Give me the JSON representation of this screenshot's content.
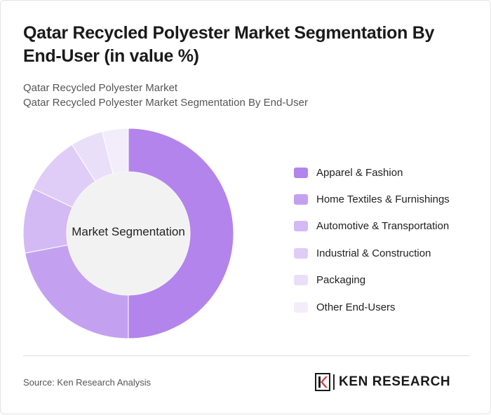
{
  "title": "Qatar Recycled Polyester Market Segmentation By End-User (in value %)",
  "breadcrumb": [
    "Qatar Recycled Polyester Market",
    "Qatar Recycled Polyester Market Segmentation By End-User"
  ],
  "chart_data": {
    "type": "pie",
    "variant": "donut",
    "center_label": "Market Segmentation",
    "legend_position": "right",
    "categories": [
      "Apparel & Fashion",
      "Home Textiles & Furnishings",
      "Automotive & Transportation",
      "Industrial & Construction",
      "Packaging",
      "Other End-Users"
    ],
    "values": [
      50,
      22,
      10,
      9,
      5,
      4
    ],
    "colors": [
      "#b284ec",
      "#c4a1f0",
      "#d3baf4",
      "#dfcdf7",
      "#eadff9",
      "#f3edfb"
    ]
  },
  "footer": {
    "source": "Source: Ken Research Analysis",
    "brand": "KEN RESEARCH"
  }
}
